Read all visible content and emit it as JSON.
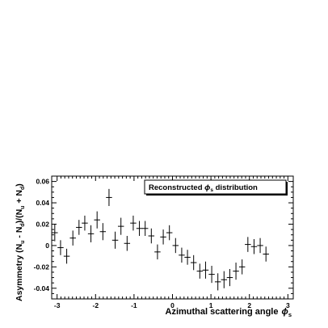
{
  "chart_data": {
    "type": "scatter",
    "xlabel_main": "Azimuthal scattering angle",
    "xlabel_symbol": "ϕ",
    "xlabel_sub": "s",
    "ylabel_parts": [
      "Asymmetry (N",
      "u",
      " - N",
      "d",
      ")/(N",
      "u",
      " + N",
      "d",
      ")"
    ],
    "legend": {
      "prefix": "Reconstructed ",
      "symbol": "ϕ",
      "sub": "s",
      "suffix": " distribution"
    },
    "xlim": [
      -3.14,
      3.14
    ],
    "ylim": [
      -0.05,
      0.065
    ],
    "xticks": [
      -3,
      -2,
      -1,
      0,
      1,
      2,
      3
    ],
    "xtick_labels": [
      "-3",
      "-2",
      "-1",
      "0",
      "1",
      "2",
      "3"
    ],
    "yticks": [
      -0.04,
      -0.02,
      0,
      0.02,
      0.04,
      0.06
    ],
    "ytick_labels": [
      "-0.04",
      "-0.02",
      "0",
      "0.02",
      "0.04",
      "0.06"
    ],
    "x_bin_halfwidth": 0.0785,
    "points": [
      {
        "x": -3.06,
        "y": 0.012,
        "err": 0.008
      },
      {
        "x": -2.91,
        "y": -0.002,
        "err": 0.007
      },
      {
        "x": -2.75,
        "y": -0.01,
        "err": 0.007
      },
      {
        "x": -2.59,
        "y": 0.007,
        "err": 0.007
      },
      {
        "x": -2.43,
        "y": 0.017,
        "err": 0.007
      },
      {
        "x": -2.28,
        "y": 0.021,
        "err": 0.007
      },
      {
        "x": -2.12,
        "y": 0.011,
        "err": 0.008
      },
      {
        "x": -1.96,
        "y": 0.024,
        "err": 0.008
      },
      {
        "x": -1.81,
        "y": 0.013,
        "err": 0.008
      },
      {
        "x": -1.65,
        "y": 0.045,
        "err": 0.008
      },
      {
        "x": -1.49,
        "y": 0.005,
        "err": 0.008
      },
      {
        "x": -1.34,
        "y": 0.018,
        "err": 0.008
      },
      {
        "x": -1.18,
        "y": 0.002,
        "err": 0.007
      },
      {
        "x": -1.02,
        "y": 0.021,
        "err": 0.007
      },
      {
        "x": -0.86,
        "y": 0.016,
        "err": 0.007
      },
      {
        "x": -0.71,
        "y": 0.016,
        "err": 0.007
      },
      {
        "x": -0.55,
        "y": 0.009,
        "err": 0.007
      },
      {
        "x": -0.39,
        "y": -0.006,
        "err": 0.007
      },
      {
        "x": -0.24,
        "y": 0.008,
        "err": 0.007
      },
      {
        "x": -0.08,
        "y": 0.012,
        "err": 0.007
      },
      {
        "x": 0.08,
        "y": 0.0,
        "err": 0.007
      },
      {
        "x": 0.24,
        "y": -0.009,
        "err": 0.007
      },
      {
        "x": 0.39,
        "y": -0.011,
        "err": 0.007
      },
      {
        "x": 0.55,
        "y": -0.016,
        "err": 0.007
      },
      {
        "x": 0.71,
        "y": -0.024,
        "err": 0.007
      },
      {
        "x": 0.86,
        "y": -0.023,
        "err": 0.008
      },
      {
        "x": 1.02,
        "y": -0.027,
        "err": 0.008
      },
      {
        "x": 1.18,
        "y": -0.034,
        "err": 0.008
      },
      {
        "x": 1.34,
        "y": -0.032,
        "err": 0.008
      },
      {
        "x": 1.49,
        "y": -0.03,
        "err": 0.008
      },
      {
        "x": 1.65,
        "y": -0.024,
        "err": 0.008
      },
      {
        "x": 1.81,
        "y": -0.02,
        "err": 0.007
      },
      {
        "x": 1.96,
        "y": 0.001,
        "err": 0.007
      },
      {
        "x": 2.12,
        "y": -0.001,
        "err": 0.007
      },
      {
        "x": 2.28,
        "y": 0.0,
        "err": 0.007
      },
      {
        "x": 2.43,
        "y": -0.008,
        "err": 0.007
      }
    ]
  }
}
